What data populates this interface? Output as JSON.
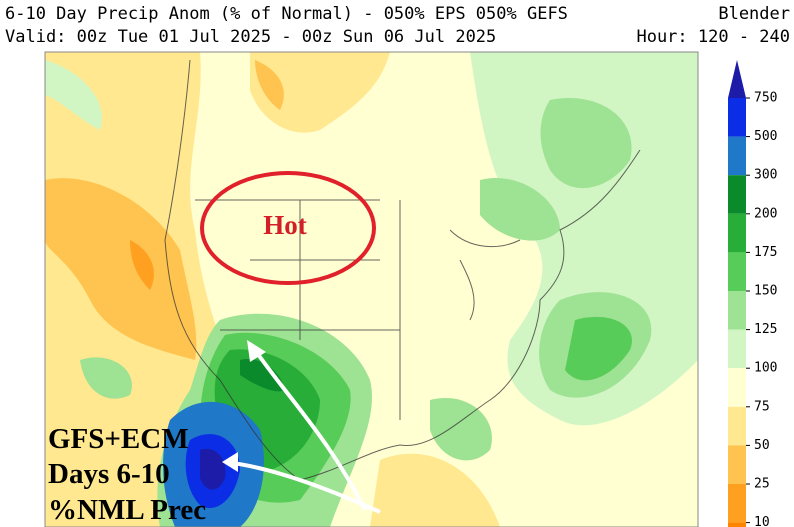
{
  "header": {
    "title": "6-10 Day Precip Anom (% of Normal) - 050% EPS 050% GEFS",
    "model": "Blender",
    "valid": "Valid: 00z Tue 01 Jul 2025 - 00z Sun 06 Jul 2025",
    "hours": "Hour: 120 - 240"
  },
  "legend": {
    "levels": [
      750,
      500,
      300,
      200,
      175,
      150,
      125,
      100,
      75,
      50,
      25,
      10
    ],
    "colors": [
      "#1c1ca8",
      "#0b2de6",
      "#1f78c8",
      "#0b8a2c",
      "#27ad38",
      "#58cc58",
      "#9ee294",
      "#d2f5c4",
      "#ffffd2",
      "#ffe890",
      "#ffc450",
      "#ffa020",
      "#ff8400"
    ]
  },
  "annotations": {
    "hot": "Hot",
    "lines": [
      "GFS+ECM",
      "Days 6-10",
      "%NML Prec"
    ]
  }
}
